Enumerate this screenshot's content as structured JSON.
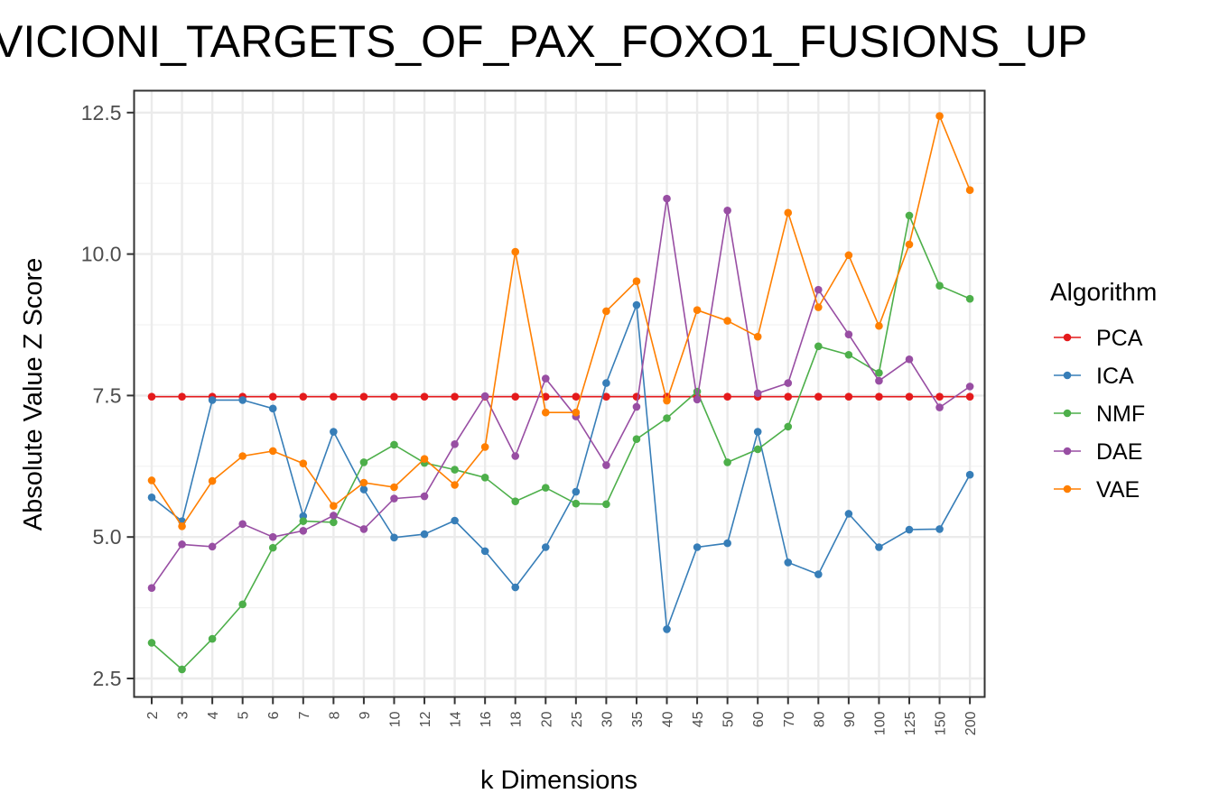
{
  "chart_data": {
    "type": "line",
    "title": "VICIONI_TARGETS_OF_PAX_FOXO1_FUSIONS_UP",
    "xlabel": "k Dimensions",
    "ylabel": "Absolute Value Z Score",
    "categories": [
      "2",
      "3",
      "4",
      "5",
      "6",
      "7",
      "8",
      "9",
      "10",
      "12",
      "14",
      "16",
      "18",
      "20",
      "25",
      "30",
      "35",
      "40",
      "45",
      "50",
      "60",
      "70",
      "80",
      "90",
      "100",
      "125",
      "150",
      "200"
    ],
    "yticks": [
      "2.5",
      "5.0",
      "7.5",
      "10.0",
      "12.5"
    ],
    "ylim": [
      2.2,
      12.9
    ],
    "grid": true,
    "legend": {
      "title": "Algorithm",
      "placement": "right"
    },
    "series": [
      {
        "name": "PCA",
        "color": "#e41a1c",
        "values": [
          7.48,
          7.48,
          7.48,
          7.48,
          7.48,
          7.48,
          7.48,
          7.48,
          7.48,
          7.48,
          7.48,
          7.48,
          7.48,
          7.48,
          7.48,
          7.48,
          7.48,
          7.48,
          7.48,
          7.48,
          7.48,
          7.48,
          7.48,
          7.48,
          7.48,
          7.48,
          7.48,
          7.48
        ]
      },
      {
        "name": "ICA",
        "color": "#377eb8",
        "values": [
          5.7,
          5.28,
          7.42,
          7.42,
          7.27,
          5.37,
          6.86,
          5.84,
          4.99,
          5.05,
          5.29,
          4.75,
          4.11,
          4.82,
          5.8,
          7.72,
          9.1,
          3.37,
          4.82,
          4.89,
          6.86,
          4.55,
          4.34,
          5.41,
          4.82,
          5.13,
          5.14,
          6.1
        ]
      },
      {
        "name": "NMF",
        "color": "#4daf4a",
        "values": [
          3.13,
          2.66,
          3.2,
          3.81,
          4.81,
          5.28,
          5.26,
          6.32,
          6.63,
          6.31,
          6.19,
          6.05,
          5.63,
          5.87,
          5.59,
          5.58,
          6.73,
          7.1,
          7.57,
          6.32,
          6.55,
          6.95,
          8.37,
          8.22,
          7.9,
          10.68,
          9.44,
          9.21
        ]
      },
      {
        "name": "DAE",
        "color": "#984ea3",
        "values": [
          4.1,
          4.87,
          4.83,
          5.23,
          5.0,
          5.11,
          5.38,
          5.14,
          5.68,
          5.72,
          6.64,
          7.49,
          6.43,
          7.8,
          7.13,
          6.27,
          7.3,
          10.98,
          7.43,
          10.77,
          7.54,
          7.72,
          9.37,
          8.58,
          7.76,
          8.14,
          7.29,
          7.66
        ]
      },
      {
        "name": "VAE",
        "color": "#ff7f00",
        "values": [
          6.0,
          5.19,
          5.99,
          6.43,
          6.52,
          6.3,
          5.55,
          5.96,
          5.88,
          6.38,
          5.92,
          6.59,
          10.04,
          7.2,
          7.2,
          8.99,
          9.52,
          7.41,
          9.01,
          8.82,
          8.54,
          10.73,
          9.06,
          9.98,
          8.73,
          10.17,
          12.44,
          11.13
        ]
      }
    ]
  }
}
